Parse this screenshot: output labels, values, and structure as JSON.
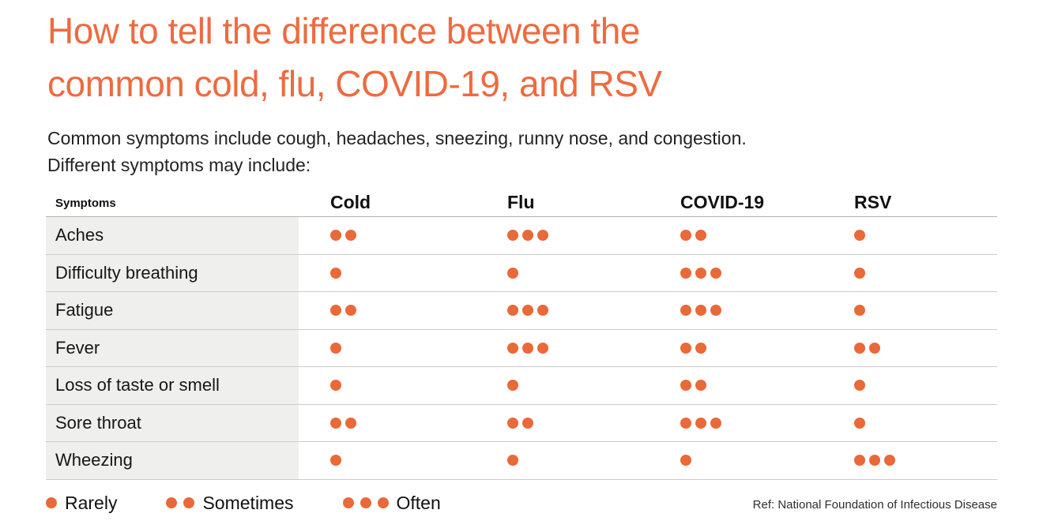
{
  "page": {
    "title_line1": "How to tell the difference between the",
    "title_line2": "common cold, flu, COVID-19, and RSV",
    "subtitle_line1": "Common symptoms include cough, headaches, sneezing, runny nose, and congestion.",
    "subtitle_line2": "Different symptoms may include:",
    "reference": "Ref: National Foundation of Infectious Disease"
  },
  "colors": {
    "accent_orange": "#E96938",
    "title_orange": "#ED6B40",
    "row_label_bg": "#EFEFED",
    "row_line": "#CBCBCB",
    "header_line": "#B2B2B2"
  },
  "chart_data": {
    "type": "table",
    "title": "How to tell the difference between the common cold, flu, COVID-19, and RSV",
    "row_header": "Symptoms",
    "columns": [
      "Cold",
      "Flu",
      "COVID-19",
      "RSV"
    ],
    "rows": [
      {
        "symptom": "Aches",
        "values": [
          2,
          3,
          2,
          1
        ]
      },
      {
        "symptom": "Difficulty breathing",
        "values": [
          1,
          1,
          3,
          1
        ]
      },
      {
        "symptom": "Fatigue",
        "values": [
          2,
          3,
          3,
          1
        ]
      },
      {
        "symptom": "Fever",
        "values": [
          1,
          3,
          2,
          2
        ]
      },
      {
        "symptom": "Loss of taste or smell",
        "values": [
          1,
          1,
          2,
          1
        ]
      },
      {
        "symptom": "Sore throat",
        "values": [
          2,
          2,
          3,
          1
        ]
      },
      {
        "symptom": "Wheezing",
        "values": [
          1,
          1,
          1,
          3
        ]
      }
    ],
    "dot_scale": {
      "1": "Rarely",
      "2": "Sometimes",
      "3": "Often"
    },
    "legend": [
      {
        "label": "Rarely",
        "dots": 1
      },
      {
        "label": "Sometimes",
        "dots": 2
      },
      {
        "label": "Often",
        "dots": 3
      }
    ],
    "legend_position": "bottom-left"
  }
}
